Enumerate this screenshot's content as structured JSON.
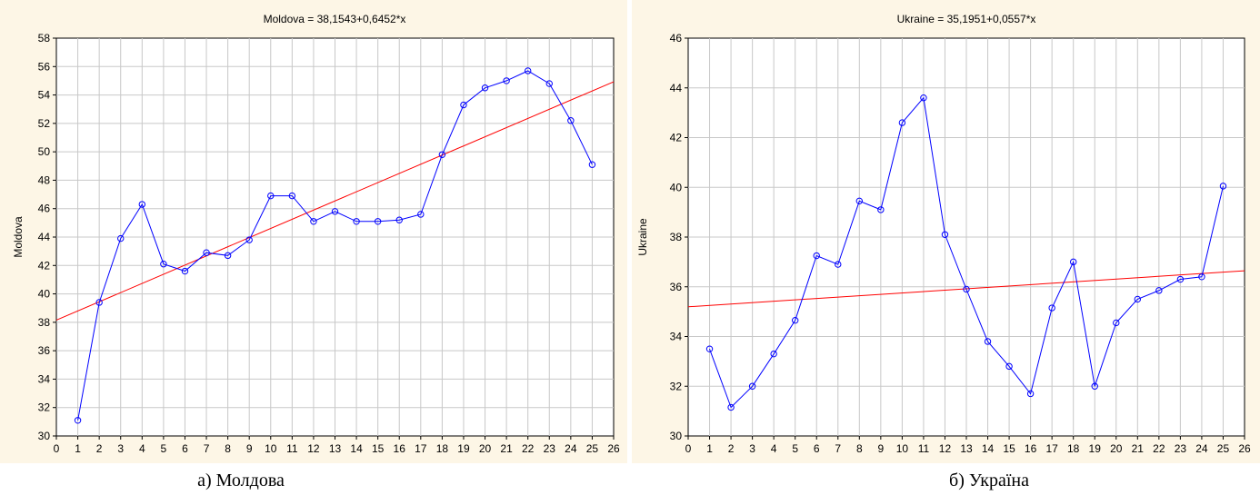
{
  "chart_data": [
    {
      "type": "line",
      "title": "Moldova = 38,1543+0,6452*x",
      "ylabel": "Moldova",
      "xlabel": "",
      "caption": "а) Молдова",
      "xlim": [
        0,
        26
      ],
      "ylim": [
        30,
        58
      ],
      "x_ticks": [
        0,
        1,
        2,
        3,
        4,
        5,
        6,
        7,
        8,
        9,
        10,
        11,
        12,
        13,
        14,
        15,
        16,
        17,
        18,
        19,
        20,
        21,
        22,
        23,
        24,
        25,
        26
      ],
      "y_ticks": [
        30,
        32,
        34,
        36,
        38,
        40,
        42,
        44,
        46,
        48,
        50,
        52,
        54,
        56,
        58
      ],
      "grid": true,
      "x": [
        1,
        2,
        3,
        4,
        5,
        6,
        7,
        8,
        9,
        10,
        11,
        12,
        13,
        14,
        15,
        16,
        17,
        18,
        19,
        20,
        21,
        22,
        23,
        24,
        25
      ],
      "values": [
        31.1,
        39.4,
        43.9,
        46.3,
        42.1,
        41.6,
        42.9,
        42.7,
        43.8,
        46.9,
        46.9,
        45.1,
        45.8,
        45.1,
        45.1,
        45.2,
        45.6,
        49.8,
        53.3,
        54.5,
        55.0,
        55.7,
        54.8,
        52.2,
        49.1
      ],
      "trend": {
        "intercept": 38.1543,
        "slope": 0.6452
      },
      "colors": {
        "series": "#0000ff",
        "trend": "#ff0000"
      }
    },
    {
      "type": "line",
      "title": "Ukraine = 35,1951+0,0557*x",
      "ylabel": "Ukraine",
      "xlabel": "",
      "caption": "б) Україна",
      "xlim": [
        0,
        26
      ],
      "ylim": [
        30,
        46
      ],
      "x_ticks": [
        0,
        1,
        2,
        3,
        4,
        5,
        6,
        7,
        8,
        9,
        10,
        11,
        12,
        13,
        14,
        15,
        16,
        17,
        18,
        19,
        20,
        21,
        22,
        23,
        24,
        25,
        26
      ],
      "y_ticks": [
        30,
        32,
        34,
        36,
        38,
        40,
        42,
        44,
        46
      ],
      "grid": true,
      "x": [
        1,
        2,
        3,
        4,
        5,
        6,
        7,
        8,
        9,
        10,
        11,
        12,
        13,
        14,
        15,
        16,
        17,
        18,
        19,
        20,
        21,
        22,
        23,
        24,
        25
      ],
      "values": [
        33.5,
        31.15,
        32.0,
        33.3,
        34.65,
        37.25,
        36.9,
        39.45,
        39.1,
        42.6,
        43.6,
        38.1,
        35.9,
        33.8,
        32.8,
        31.7,
        35.15,
        37.0,
        32.0,
        34.55,
        35.5,
        35.85,
        36.3,
        36.4,
        40.05
      ],
      "trend": {
        "intercept": 35.1951,
        "slope": 0.0557
      },
      "colors": {
        "series": "#0000ff",
        "trend": "#ff0000"
      }
    }
  ]
}
